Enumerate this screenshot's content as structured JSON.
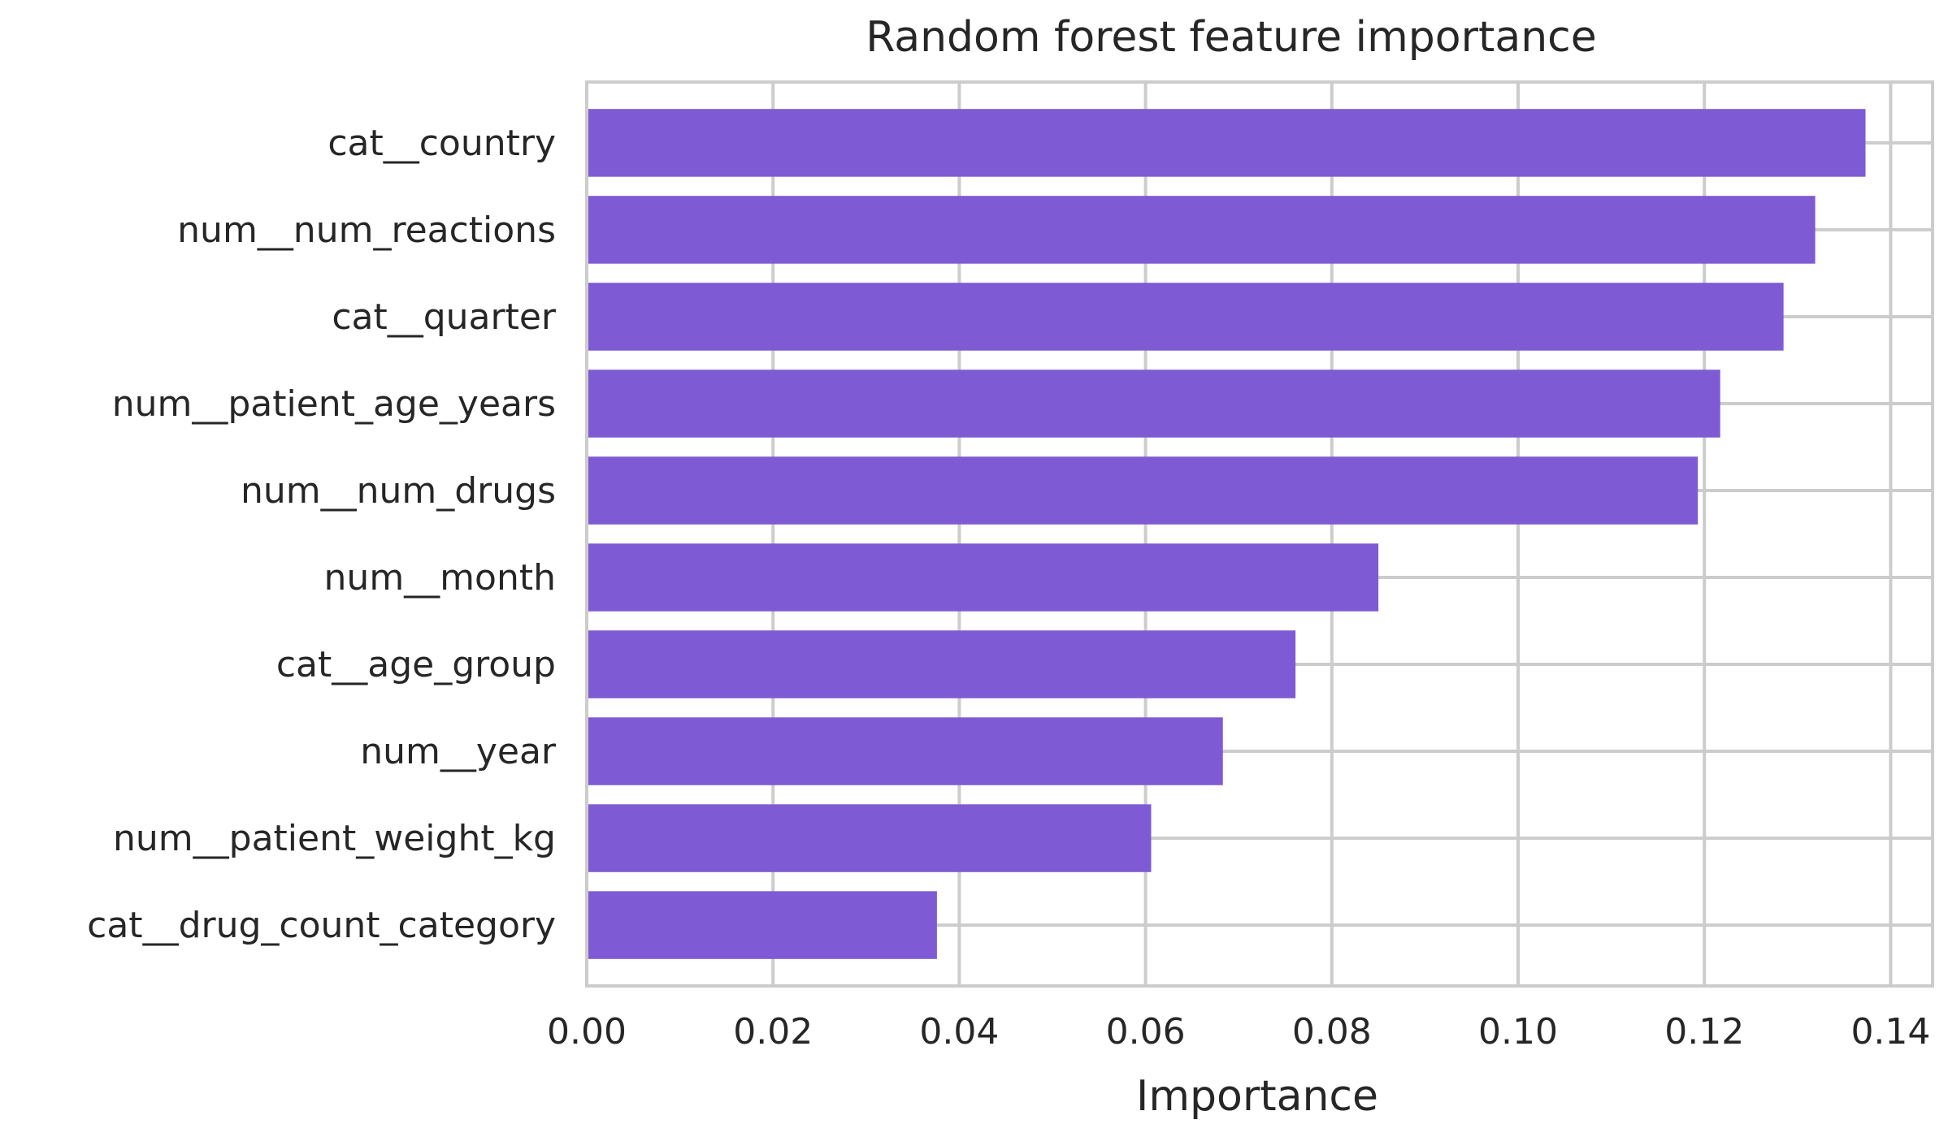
{
  "chart_data": {
    "type": "bar",
    "orientation": "horizontal",
    "title": "Random forest feature importance",
    "xlabel": "Importance",
    "ylabel": "",
    "categories": [
      "cat__country",
      "num__num_reactions",
      "cat__quarter",
      "num__patient_age_years",
      "num__num_drugs",
      "num__month",
      "cat__age_group",
      "num__year",
      "num__patient_weight_kg",
      "cat__drug_count_category"
    ],
    "values": [
      0.1373,
      0.1319,
      0.1285,
      0.1217,
      0.1193,
      0.085,
      0.0761,
      0.0683,
      0.0606,
      0.0376
    ],
    "xlim": [
      0.0,
      0.1445
    ],
    "xticks": [
      0.0,
      0.02,
      0.04,
      0.06,
      0.08,
      0.1,
      0.12,
      0.14
    ],
    "xtick_labels": [
      "0.00",
      "0.02",
      "0.04",
      "0.06",
      "0.08",
      "0.10",
      "0.12",
      "0.14"
    ],
    "grid": true,
    "colors": {
      "bar": "#7e5bd4",
      "grid": "#cccccc",
      "spine": "#cccccc",
      "text": "#262626"
    }
  }
}
